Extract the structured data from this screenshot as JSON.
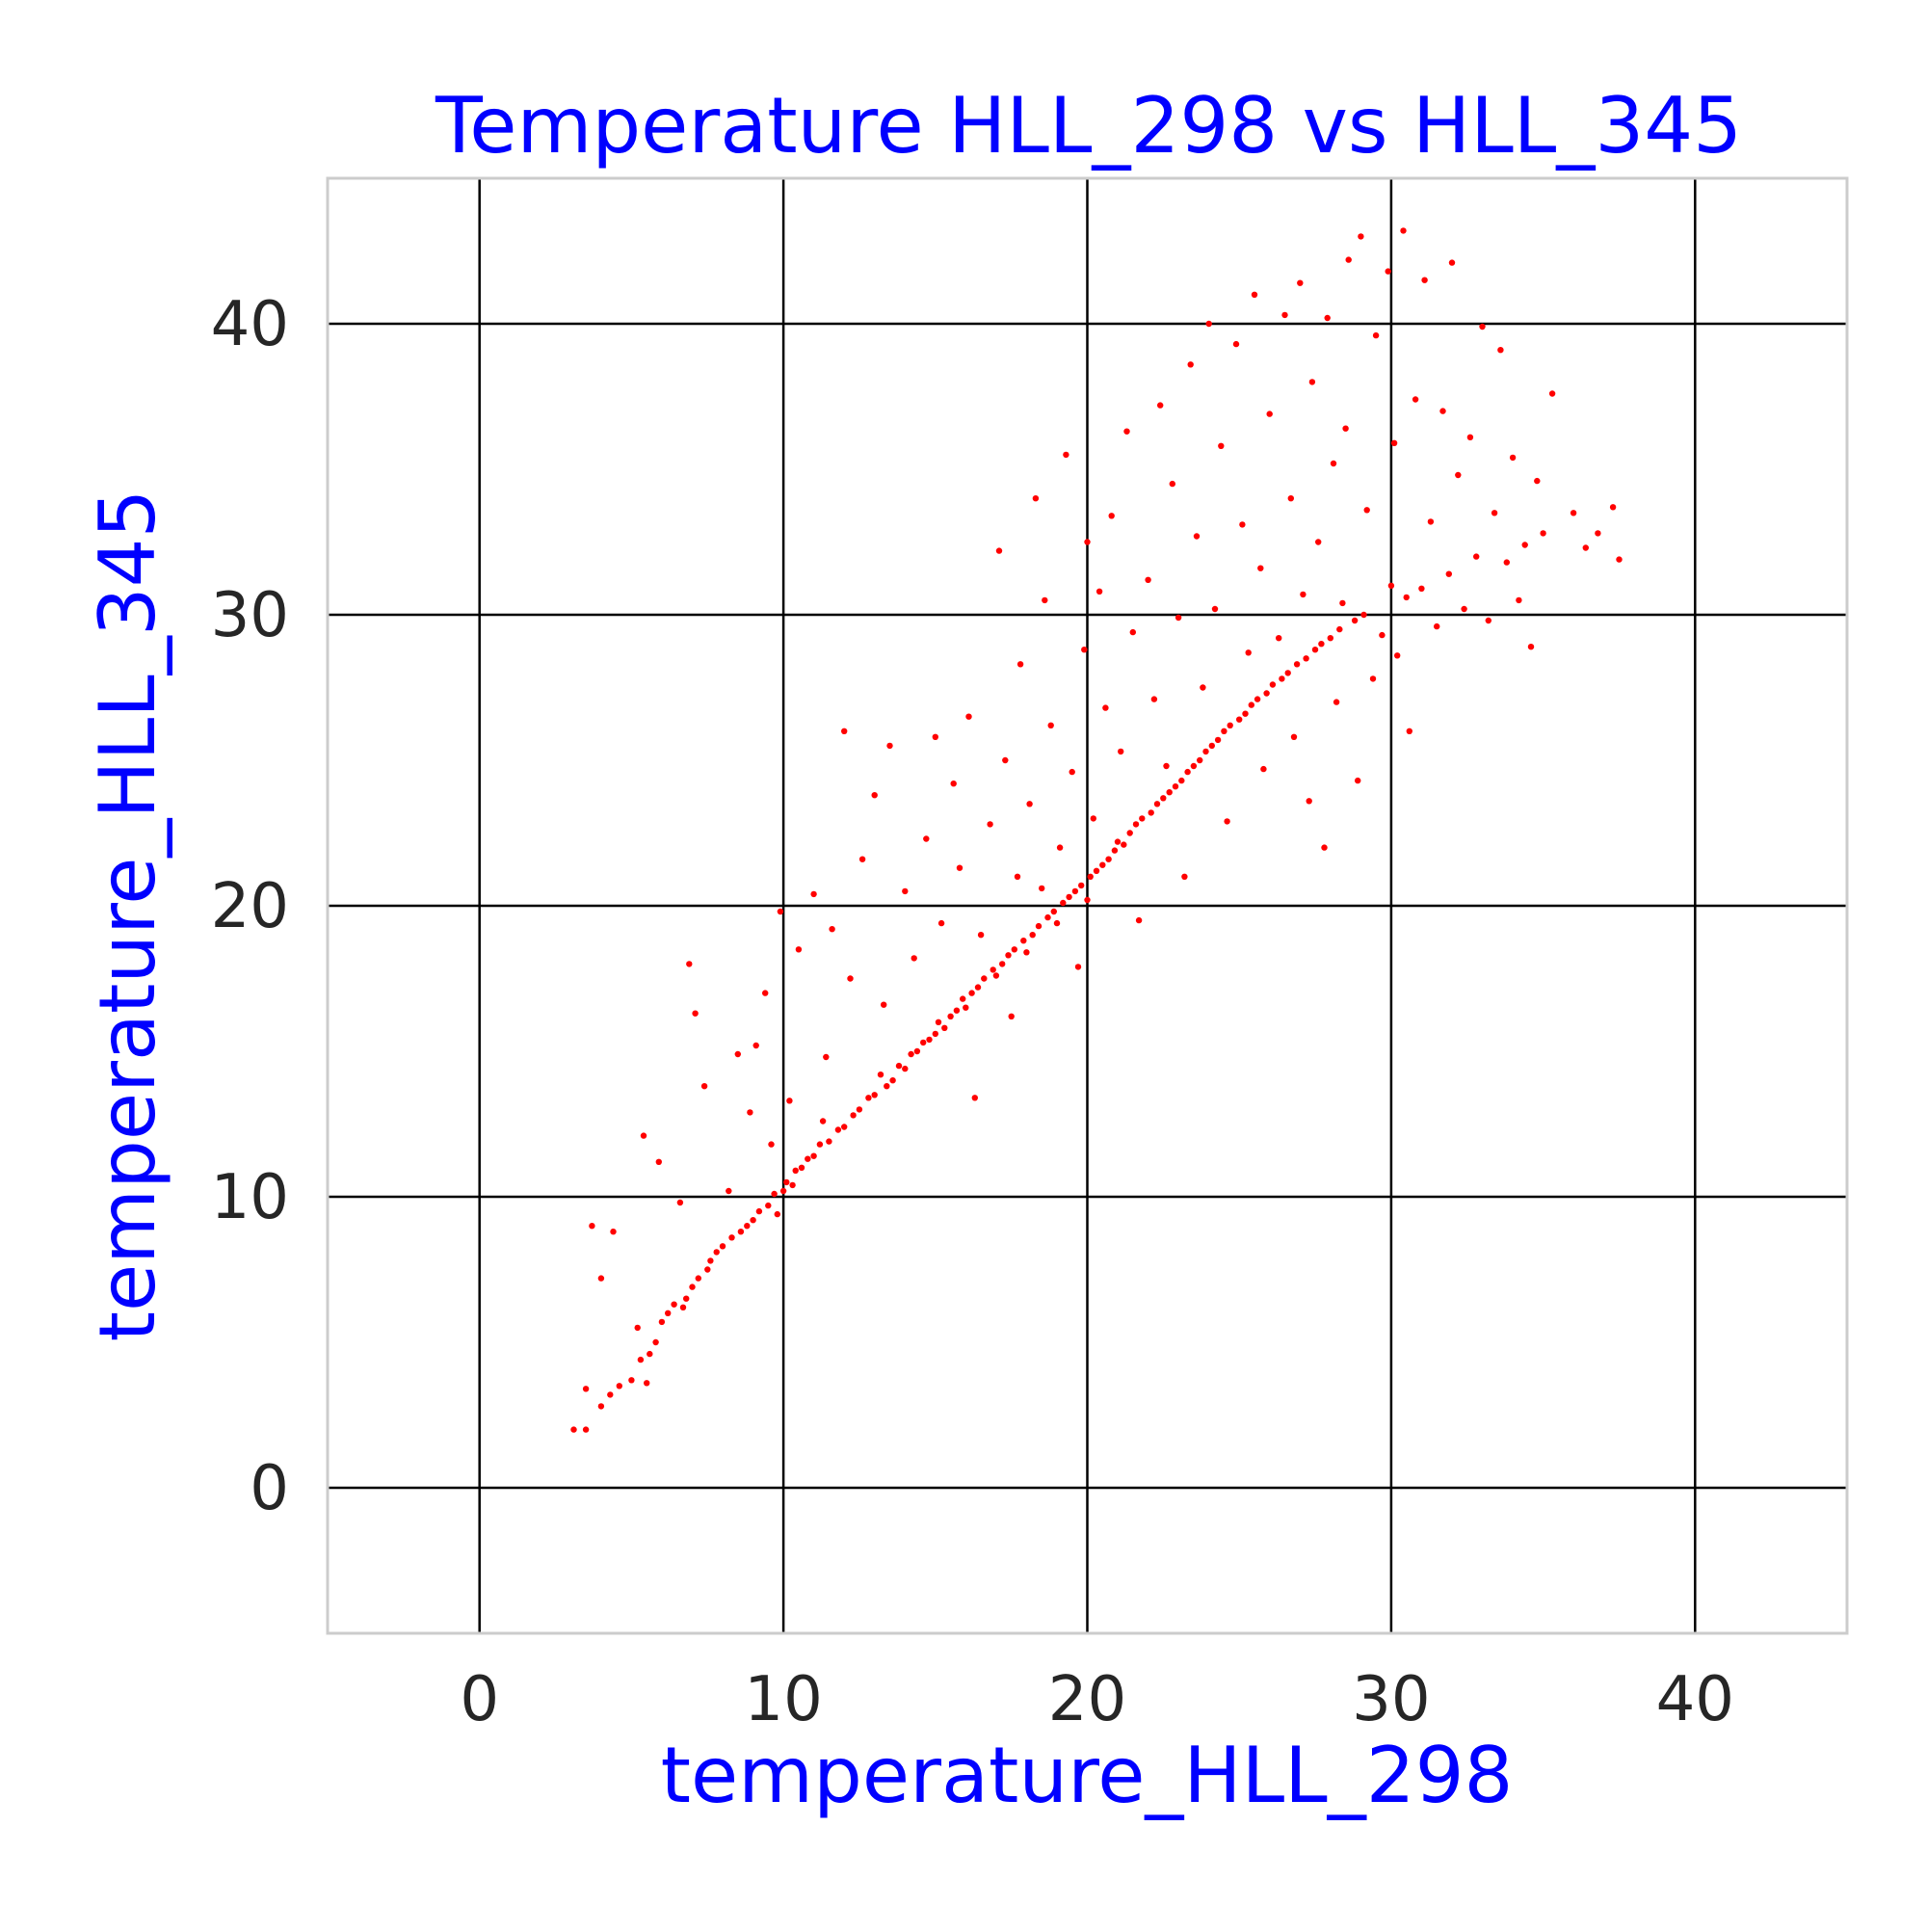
{
  "chart_data": {
    "type": "scatter",
    "title": "Temperature HLL_298 vs HLL_345",
    "xlabel": "temperature_HLL_298",
    "ylabel": "temperature_HLL_345",
    "xlim": [
      -5,
      45
    ],
    "ylim": [
      -5,
      45
    ],
    "xticks": [
      "0",
      "10",
      "20",
      "30",
      "40"
    ],
    "yticks": [
      "0",
      "10",
      "20",
      "30",
      "40"
    ],
    "grid": true,
    "legend": "none",
    "colors": {
      "points": "#ff0000",
      "title": "#0000ff",
      "axis_labels": "#0000ff",
      "ticks": "#262626",
      "grid": "#000000",
      "frame": "#cccccc"
    },
    "series": [
      {
        "values": [
          [
            3.1,
            2.0
          ],
          [
            3.5,
            2.0
          ],
          [
            3.5,
            3.4
          ],
          [
            3.7,
            9.0
          ],
          [
            4.0,
            2.8
          ],
          [
            4.0,
            7.2
          ],
          [
            4.3,
            3.2
          ],
          [
            4.4,
            8.8
          ],
          [
            4.6,
            3.5
          ],
          [
            5.0,
            3.7
          ],
          [
            5.2,
            5.5
          ],
          [
            5.3,
            4.4
          ],
          [
            5.4,
            12.1
          ],
          [
            5.5,
            3.6
          ],
          [
            5.6,
            4.6
          ],
          [
            5.8,
            5.0
          ],
          [
            5.9,
            11.2
          ],
          [
            6.0,
            5.7
          ],
          [
            6.2,
            6.0
          ],
          [
            6.4,
            6.3
          ],
          [
            6.6,
            9.8
          ],
          [
            6.7,
            6.2
          ],
          [
            6.8,
            6.5
          ],
          [
            6.9,
            18.0
          ],
          [
            7.0,
            6.9
          ],
          [
            7.1,
            16.3
          ],
          [
            7.2,
            7.2
          ],
          [
            7.4,
            13.8
          ],
          [
            7.5,
            7.5
          ],
          [
            7.6,
            7.8
          ],
          [
            7.8,
            8.1
          ],
          [
            8.0,
            8.3
          ],
          [
            8.2,
            10.2
          ],
          [
            8.3,
            8.6
          ],
          [
            8.5,
            14.9
          ],
          [
            8.6,
            8.8
          ],
          [
            8.8,
            9.0
          ],
          [
            8.9,
            12.9
          ],
          [
            9.0,
            9.2
          ],
          [
            9.1,
            15.2
          ],
          [
            9.2,
            9.5
          ],
          [
            9.4,
            17.0
          ],
          [
            9.5,
            9.7
          ],
          [
            9.6,
            11.8
          ],
          [
            9.7,
            10.1
          ],
          [
            9.8,
            9.4
          ],
          [
            9.9,
            19.8
          ],
          [
            10.0,
            10.2
          ],
          [
            10.1,
            10.5
          ],
          [
            10.2,
            13.3
          ],
          [
            10.3,
            10.4
          ],
          [
            10.4,
            10.9
          ],
          [
            10.5,
            18.5
          ],
          [
            10.6,
            11.0
          ],
          [
            10.8,
            11.3
          ],
          [
            11.0,
            20.4
          ],
          [
            11.0,
            11.4
          ],
          [
            11.2,
            11.8
          ],
          [
            11.3,
            12.6
          ],
          [
            11.4,
            14.8
          ],
          [
            11.5,
            11.9
          ],
          [
            11.6,
            19.2
          ],
          [
            11.8,
            12.3
          ],
          [
            12.0,
            26.0
          ],
          [
            12.0,
            12.4
          ],
          [
            12.2,
            17.5
          ],
          [
            12.3,
            12.8
          ],
          [
            12.5,
            13.0
          ],
          [
            12.6,
            21.6
          ],
          [
            12.8,
            13.4
          ],
          [
            13.0,
            13.5
          ],
          [
            13.0,
            23.8
          ],
          [
            13.2,
            14.2
          ],
          [
            13.3,
            16.6
          ],
          [
            13.4,
            13.8
          ],
          [
            13.5,
            25.5
          ],
          [
            13.6,
            14.0
          ],
          [
            13.8,
            14.5
          ],
          [
            14.0,
            14.4
          ],
          [
            14.0,
            20.5
          ],
          [
            14.2,
            14.9
          ],
          [
            14.3,
            18.2
          ],
          [
            14.4,
            15.0
          ],
          [
            14.6,
            15.3
          ],
          [
            14.7,
            22.3
          ],
          [
            14.8,
            15.4
          ],
          [
            15.0,
            15.6
          ],
          [
            15.0,
            25.8
          ],
          [
            15.1,
            16.0
          ],
          [
            15.2,
            19.4
          ],
          [
            15.3,
            15.8
          ],
          [
            15.5,
            16.2
          ],
          [
            15.6,
            24.2
          ],
          [
            15.7,
            16.4
          ],
          [
            15.8,
            21.3
          ],
          [
            15.9,
            16.8
          ],
          [
            16.0,
            16.5
          ],
          [
            16.1,
            26.5
          ],
          [
            16.2,
            17.0
          ],
          [
            16.3,
            13.4
          ],
          [
            16.4,
            17.2
          ],
          [
            16.5,
            19.0
          ],
          [
            16.6,
            17.5
          ],
          [
            16.8,
            22.8
          ],
          [
            16.9,
            17.8
          ],
          [
            17.0,
            17.6
          ],
          [
            17.1,
            32.2
          ],
          [
            17.2,
            18.0
          ],
          [
            17.3,
            25.0
          ],
          [
            17.4,
            18.3
          ],
          [
            17.5,
            16.2
          ],
          [
            17.6,
            18.5
          ],
          [
            17.7,
            21.0
          ],
          [
            17.8,
            28.3
          ],
          [
            17.9,
            18.8
          ],
          [
            18.0,
            18.4
          ],
          [
            18.1,
            23.5
          ],
          [
            18.2,
            19.0
          ],
          [
            18.3,
            34.0
          ],
          [
            18.4,
            19.3
          ],
          [
            18.5,
            20.6
          ],
          [
            18.6,
            30.5
          ],
          [
            18.7,
            19.6
          ],
          [
            18.8,
            26.2
          ],
          [
            18.9,
            19.8
          ],
          [
            19.0,
            19.4
          ],
          [
            19.1,
            22.0
          ],
          [
            19.2,
            20.1
          ],
          [
            19.3,
            35.5
          ],
          [
            19.4,
            20.3
          ],
          [
            19.5,
            24.6
          ],
          [
            19.6,
            20.5
          ],
          [
            19.7,
            17.9
          ],
          [
            19.8,
            20.7
          ],
          [
            19.9,
            28.8
          ],
          [
            20.0,
            20.2
          ],
          [
            20.0,
            32.5
          ],
          [
            20.1,
            21.0
          ],
          [
            20.2,
            23.0
          ],
          [
            20.3,
            21.2
          ],
          [
            20.4,
            30.8
          ],
          [
            20.5,
            21.4
          ],
          [
            20.6,
            26.8
          ],
          [
            20.7,
            21.6
          ],
          [
            20.8,
            33.4
          ],
          [
            20.9,
            21.9
          ],
          [
            21.0,
            22.2
          ],
          [
            21.1,
            25.3
          ],
          [
            21.2,
            22.1
          ],
          [
            21.3,
            36.3
          ],
          [
            21.4,
            22.5
          ],
          [
            21.5,
            29.4
          ],
          [
            21.6,
            22.8
          ],
          [
            21.7,
            19.5
          ],
          [
            21.8,
            23.0
          ],
          [
            22.0,
            31.2
          ],
          [
            22.1,
            23.2
          ],
          [
            22.2,
            27.1
          ],
          [
            22.3,
            23.5
          ],
          [
            22.4,
            37.2
          ],
          [
            22.5,
            23.7
          ],
          [
            22.6,
            24.8
          ],
          [
            22.7,
            23.9
          ],
          [
            22.8,
            34.5
          ],
          [
            22.9,
            24.1
          ],
          [
            23.0,
            29.9
          ],
          [
            23.1,
            24.3
          ],
          [
            23.2,
            21.0
          ],
          [
            23.3,
            24.6
          ],
          [
            23.4,
            38.6
          ],
          [
            23.5,
            24.8
          ],
          [
            23.6,
            32.7
          ],
          [
            23.7,
            25.0
          ],
          [
            23.8,
            27.5
          ],
          [
            23.9,
            25.3
          ],
          [
            24.0,
            40.0
          ],
          [
            24.1,
            25.5
          ],
          [
            24.2,
            30.2
          ],
          [
            24.3,
            25.7
          ],
          [
            24.4,
            35.8
          ],
          [
            24.5,
            26.0
          ],
          [
            24.6,
            22.9
          ],
          [
            24.7,
            26.2
          ],
          [
            24.9,
            39.3
          ],
          [
            25.0,
            26.4
          ],
          [
            25.1,
            33.1
          ],
          [
            25.2,
            26.6
          ],
          [
            25.3,
            28.7
          ],
          [
            25.4,
            26.9
          ],
          [
            25.5,
            41.0
          ],
          [
            25.6,
            27.1
          ],
          [
            25.7,
            31.6
          ],
          [
            25.8,
            24.7
          ],
          [
            25.9,
            27.3
          ],
          [
            26.0,
            36.9
          ],
          [
            26.1,
            27.6
          ],
          [
            26.3,
            29.2
          ],
          [
            26.4,
            27.8
          ],
          [
            26.5,
            40.3
          ],
          [
            26.6,
            28.0
          ],
          [
            26.7,
            34.0
          ],
          [
            26.8,
            25.8
          ],
          [
            26.9,
            28.3
          ],
          [
            27.0,
            41.4
          ],
          [
            27.1,
            30.7
          ],
          [
            27.2,
            28.5
          ],
          [
            27.3,
            23.6
          ],
          [
            27.4,
            38.0
          ],
          [
            27.5,
            28.8
          ],
          [
            27.6,
            32.5
          ],
          [
            27.7,
            29.0
          ],
          [
            27.8,
            22.0
          ],
          [
            27.9,
            40.2
          ],
          [
            28.0,
            29.2
          ],
          [
            28.1,
            35.2
          ],
          [
            28.2,
            27.0
          ],
          [
            28.3,
            29.5
          ],
          [
            28.4,
            30.4
          ],
          [
            28.5,
            36.4
          ],
          [
            28.6,
            42.2
          ],
          [
            28.8,
            29.8
          ],
          [
            28.9,
            24.3
          ],
          [
            29.0,
            43.0
          ],
          [
            29.1,
            30.0
          ],
          [
            29.2,
            33.6
          ],
          [
            29.4,
            27.8
          ],
          [
            29.5,
            39.6
          ],
          [
            29.7,
            29.3
          ],
          [
            29.9,
            41.8
          ],
          [
            30.0,
            31.0
          ],
          [
            30.1,
            35.9
          ],
          [
            30.2,
            28.6
          ],
          [
            30.4,
            43.2
          ],
          [
            30.5,
            30.6
          ],
          [
            30.6,
            26.0
          ],
          [
            30.8,
            37.4
          ],
          [
            31.0,
            30.9
          ],
          [
            31.1,
            41.5
          ],
          [
            31.3,
            33.2
          ],
          [
            31.5,
            29.6
          ],
          [
            31.7,
            37.0
          ],
          [
            31.9,
            31.4
          ],
          [
            32.0,
            42.1
          ],
          [
            32.2,
            34.8
          ],
          [
            32.4,
            30.2
          ],
          [
            32.6,
            36.1
          ],
          [
            32.8,
            32.0
          ],
          [
            33.0,
            39.9
          ],
          [
            33.2,
            29.8
          ],
          [
            33.4,
            33.5
          ],
          [
            33.6,
            39.1
          ],
          [
            33.8,
            31.8
          ],
          [
            34.0,
            35.4
          ],
          [
            34.2,
            30.5
          ],
          [
            34.4,
            32.4
          ],
          [
            34.6,
            28.9
          ],
          [
            34.8,
            34.6
          ],
          [
            35.0,
            32.8
          ],
          [
            35.3,
            37.6
          ],
          [
            36.0,
            33.5
          ],
          [
            36.4,
            32.3
          ],
          [
            36.8,
            32.8
          ],
          [
            37.3,
            33.7
          ],
          [
            37.5,
            31.9
          ]
        ]
      }
    ]
  }
}
